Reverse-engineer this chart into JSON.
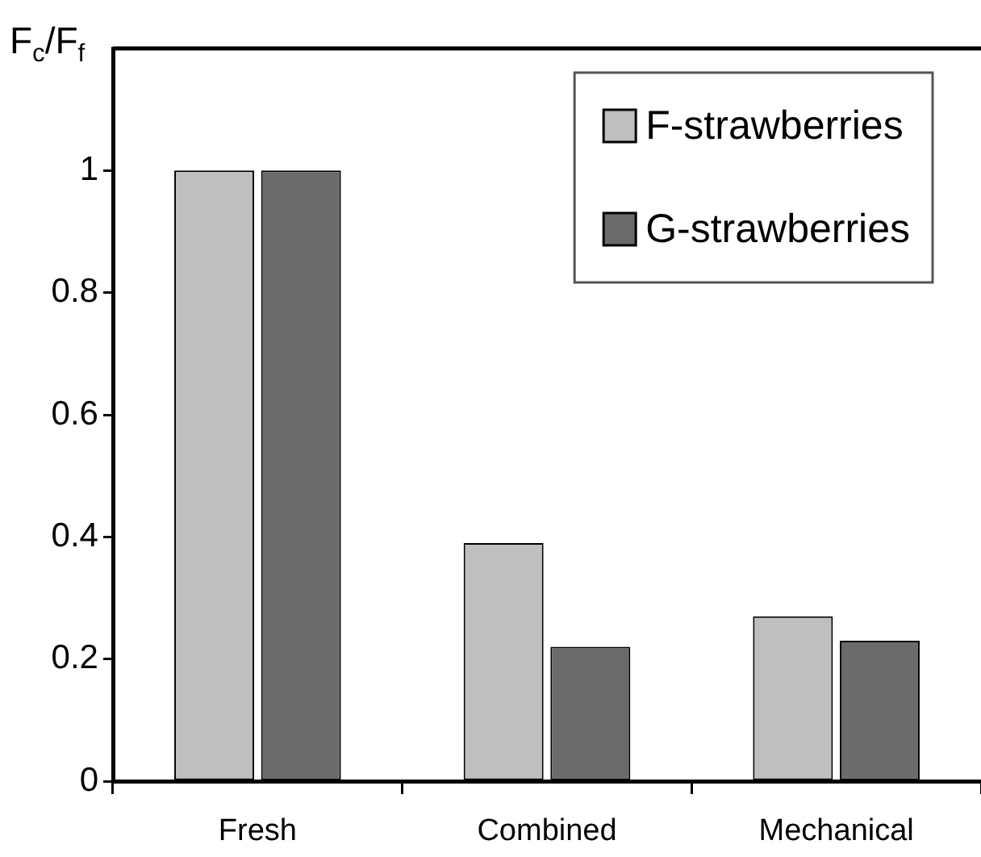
{
  "chart_data": {
    "type": "bar",
    "ylabel": "F$_{c}$/F$_{f}$",
    "categories": [
      "Fresh",
      "Combined",
      "Mechanical"
    ],
    "series": [
      {
        "name": "F-strawberries",
        "color": "#bfbfbf",
        "values": [
          1,
          0.39,
          0.27
        ]
      },
      {
        "name": "G-strawberries",
        "color": "#6b6b6b",
        "values": [
          1,
          0.22,
          0.23
        ]
      }
    ],
    "ylim": [
      0,
      1.2
    ],
    "yticks": [
      0,
      0.2,
      0.4,
      0.6,
      0.8,
      1
    ],
    "legend": "top right"
  }
}
